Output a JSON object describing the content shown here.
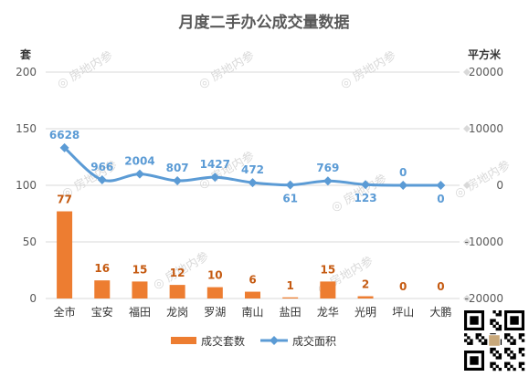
{
  "chart_data": {
    "type": "bar+line",
    "title": "月度二手办公成交量数据",
    "left_axis": {
      "unit": "套",
      "range": [
        0,
        200
      ],
      "ticks": [
        0,
        50,
        100,
        150,
        200
      ]
    },
    "right_axis": {
      "unit": "平方米",
      "range": [
        -20000,
        20000
      ],
      "ticks": [
        -20000,
        -10000,
        0,
        10000,
        20000
      ]
    },
    "categories": [
      "全市",
      "宝安",
      "福田",
      "龙岗",
      "罗湖",
      "南山",
      "盐田",
      "龙华",
      "光明",
      "坪山",
      "大鹏"
    ],
    "series": [
      {
        "name": "成交套数",
        "type": "bar",
        "axis": "left",
        "color": "#ed7d31",
        "values": [
          77,
          16,
          15,
          12,
          10,
          6,
          1,
          15,
          2,
          0,
          0
        ]
      },
      {
        "name": "成交面积",
        "type": "line",
        "axis": "right",
        "color": "#5b9bd5",
        "values": [
          6628,
          966,
          2004,
          807,
          1427,
          472,
          61,
          769,
          123,
          0,
          0
        ]
      }
    ],
    "legend": "bottom",
    "grid": true
  },
  "watermark": "房地内参"
}
